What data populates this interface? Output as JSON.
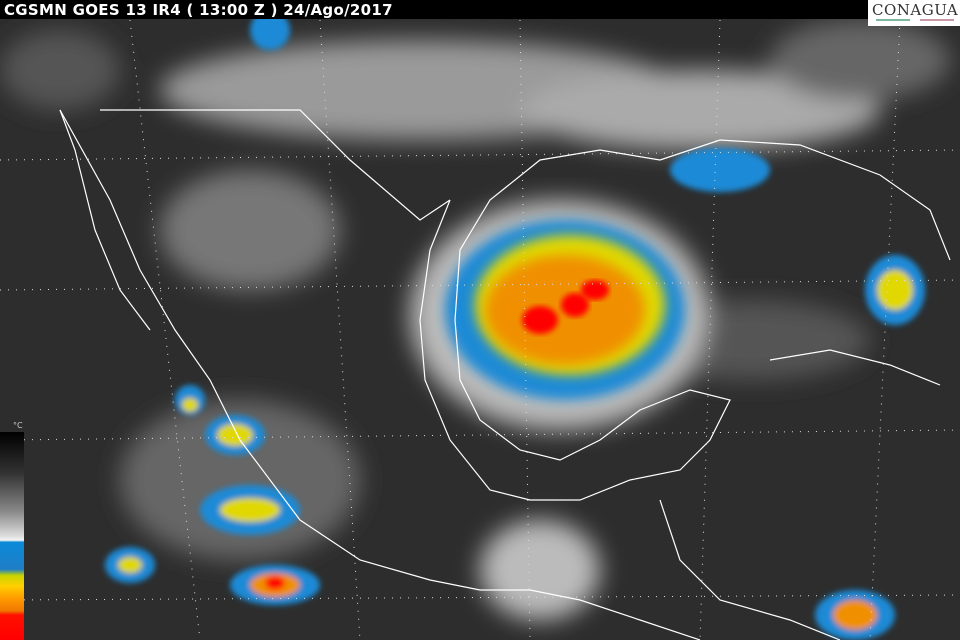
{
  "header": {
    "title": "CGSMN GOES 13 IR4 ( 13:00 Z ) 24/Ago/2017"
  },
  "logo": {
    "text": "CONAGUA"
  },
  "colorbar": {
    "unit": "°C",
    "colors": [
      "#000000",
      "#888888",
      "#f4f4f4",
      "#0a8ad8",
      "#ffd000",
      "#ff9a00",
      "#ff0000"
    ]
  }
}
